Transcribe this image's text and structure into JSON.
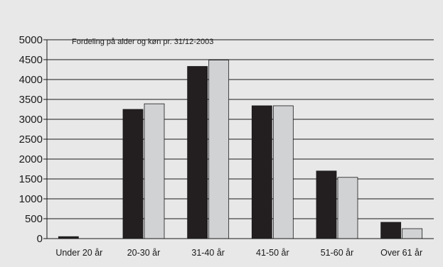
{
  "chart_data": {
    "type": "bar",
    "title": "Fordeling på alder og køn pr. 31/12-2003",
    "xlabel": "",
    "ylabel": "",
    "ylim": [
      0,
      5000
    ],
    "yticks": [
      0,
      500,
      1000,
      1500,
      2000,
      2500,
      3000,
      3500,
      4000,
      4500,
      5000
    ],
    "categories": [
      "Under 20 år",
      "20-30 år",
      "31-40 år",
      "41-50 år",
      "51-60 år",
      "Over 61 år"
    ],
    "grid": true,
    "legend": "none",
    "series": [
      {
        "values": [
          50,
          3250,
          4330,
          3340,
          1700,
          410
        ],
        "color": "#231f20"
      },
      {
        "values": [
          0,
          3390,
          4490,
          3340,
          1540,
          250
        ],
        "color": "#d1d2d4"
      }
    ]
  }
}
